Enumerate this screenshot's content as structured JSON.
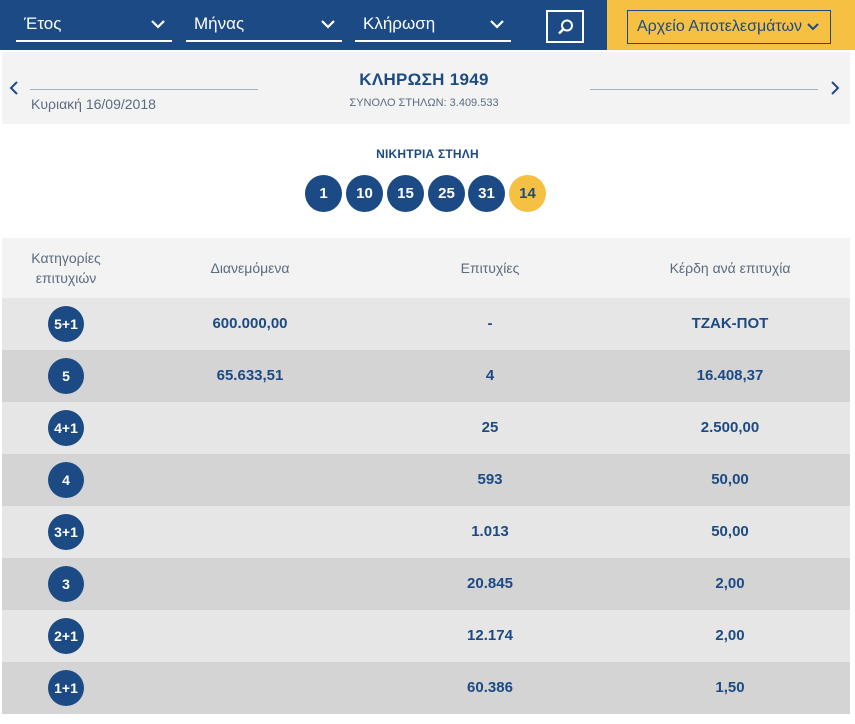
{
  "filters": {
    "year_label": "Έτος",
    "month_label": "Μήνας",
    "draw_label": "Κλήρωση",
    "archive_label": "Αρχείο Αποτελεσμάτων"
  },
  "colors": {
    "primary": "#1b4a85",
    "accent": "#f6c143",
    "header_bg": "#f3f3f3",
    "row_light": "#e6e6e6",
    "row_dark": "#d4d4d4"
  },
  "draw": {
    "title": "ΚΛΗΡΩΣΗ 1949",
    "date": "Κυριακή 16/09/2018",
    "total_columns": "ΣΥΝΟΛΟ ΣΤΗΛΩΝ: 3.409.533"
  },
  "winning": {
    "title": "ΝΙΚΗΤΡΙΑ ΣΤΗΛΗ",
    "numbers": [
      "1",
      "10",
      "15",
      "25",
      "31"
    ],
    "joker": "14"
  },
  "table": {
    "headers": {
      "category": "Κατηγορίες επιτυχιών",
      "distributed": "Διανεμόμενα",
      "winners": "Επιτυχίες",
      "prize": "Κέρδη ανά επιτυχία"
    },
    "rows": [
      {
        "category": "5+1",
        "distributed": "600.000,00",
        "winners": "-",
        "prize": "ΤΖΑΚ-ΠΟΤ"
      },
      {
        "category": "5",
        "distributed": "65.633,51",
        "winners": "4",
        "prize": "16.408,37"
      },
      {
        "category": "4+1",
        "distributed": "",
        "winners": "25",
        "prize": "2.500,00"
      },
      {
        "category": "4",
        "distributed": "",
        "winners": "593",
        "prize": "50,00"
      },
      {
        "category": "3+1",
        "distributed": "",
        "winners": "1.013",
        "prize": "50,00"
      },
      {
        "category": "3",
        "distributed": "",
        "winners": "20.845",
        "prize": "2,00"
      },
      {
        "category": "2+1",
        "distributed": "",
        "winners": "12.174",
        "prize": "2,00"
      },
      {
        "category": "1+1",
        "distributed": "",
        "winners": "60.386",
        "prize": "1,50"
      }
    ]
  }
}
